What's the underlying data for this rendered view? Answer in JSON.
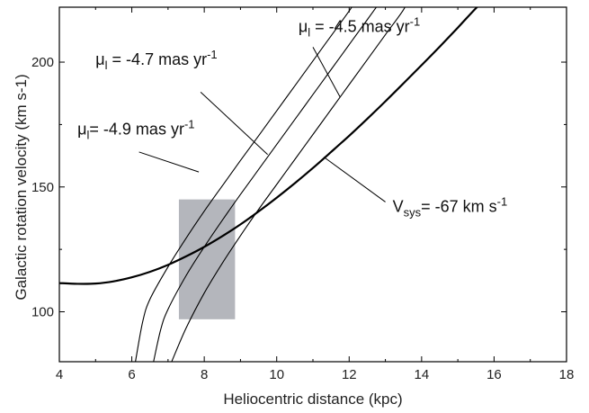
{
  "chart_data": {
    "type": "line",
    "xlabel": "Heliocentric distance (kpc)",
    "ylabel": "Galactic rotation velocity (km s-1)",
    "xlim": [
      4,
      18
    ],
    "ylim": [
      80,
      222
    ],
    "x_ticks": [
      "4",
      "6",
      "8",
      "10",
      "12",
      "14",
      "16",
      "18"
    ],
    "y_ticks": [
      "100",
      "150",
      "200"
    ],
    "grid": false,
    "series": [
      {
        "name": "Vsys= -67 km s-1",
        "style": "thick",
        "x": [
          4.0,
          4.5,
          5.0,
          5.5,
          6.0,
          6.5,
          7.0,
          7.5,
          8.0,
          8.5,
          9.0,
          9.5,
          10.0,
          10.5,
          11.0,
          11.5,
          12.0,
          12.5,
          13.0,
          13.5,
          14.0,
          14.5,
          15.0,
          15.5,
          15.9
        ],
        "y": [
          111.5,
          111.2,
          111.3,
          112.2,
          113.8,
          116.0,
          118.8,
          122.2,
          126.0,
          130.3,
          135.0,
          140.2,
          145.7,
          151.5,
          157.6,
          164.0,
          170.5,
          177.3,
          184.3,
          191.5,
          198.8,
          206.2,
          213.8,
          221.6,
          227.0
        ]
      },
      {
        "name": "μl= -4.9 mas yr-1",
        "style": "thin",
        "x": [
          6.1,
          6.3,
          6.5,
          7.0,
          7.5,
          8.0,
          8.5,
          9.0,
          9.5,
          10.0,
          10.5,
          11.0,
          11.5,
          12.0,
          12.3
        ],
        "y": [
          80.0,
          96.0,
          105.0,
          118.0,
          129.5,
          140.3,
          150.5,
          160.6,
          170.5,
          180.5,
          190.5,
          200.5,
          210.5,
          220.5,
          227.0
        ]
      },
      {
        "name": "μl = -4.7 mas yr-1",
        "style": "thin",
        "x": [
          6.6,
          6.8,
          7.0,
          7.5,
          8.0,
          8.5,
          9.0,
          9.5,
          10.0,
          10.5,
          11.0,
          11.5,
          12.0,
          12.5,
          13.0
        ],
        "y": [
          80.0,
          93.0,
          101.0,
          114.5,
          126.0,
          136.7,
          147.0,
          157.0,
          167.0,
          177.0,
          187.0,
          197.0,
          207.0,
          217.0,
          227.0
        ]
      },
      {
        "name": "μl = -4.5 mas yr-1",
        "style": "thin",
        "x": [
          7.1,
          7.5,
          8.0,
          8.5,
          9.0,
          9.5,
          10.0,
          10.5,
          11.0,
          11.5,
          12.0,
          12.5,
          13.0,
          13.5,
          13.7
        ],
        "y": [
          80.0,
          93.5,
          107.5,
          119.5,
          130.5,
          141.0,
          151.0,
          161.0,
          171.0,
          181.0,
          191.0,
          201.0,
          211.0,
          221.0,
          227.0
        ]
      }
    ],
    "shaded_region": {
      "x": [
        7.3,
        8.85
      ],
      "y": [
        97,
        145
      ],
      "color": "#b4b6bc"
    },
    "annotations": [
      {
        "id": "mu45",
        "prefix": "μ",
        "sub": "l",
        "text": " = -4.5 mas yr",
        "sup": "-1",
        "text_at": [
          10.6,
          212
        ],
        "line_from": [
          11.0,
          206
        ],
        "line_to": [
          11.75,
          186
        ]
      },
      {
        "id": "mu47",
        "prefix": "μ",
        "sub": "l",
        "text": " = -4.7 mas yr",
        "sup": "-1",
        "text_at": [
          5.0,
          199
        ],
        "line_from": [
          7.9,
          188
        ],
        "line_to": [
          9.75,
          163
        ]
      },
      {
        "id": "mu49",
        "prefix": "μ",
        "sub": "l",
        "text": "= -4.9 mas yr",
        "sup": "-1",
        "text_at": [
          4.5,
          171
        ],
        "line_from": [
          6.2,
          164
        ],
        "line_to": [
          7.85,
          156
        ]
      },
      {
        "id": "vsys",
        "prefix": "V",
        "sub": "sys",
        "text": "= -67 km s",
        "sup": "-1",
        "text_at": [
          13.2,
          140
        ],
        "line_from": [
          11.3,
          162
        ],
        "line_to": [
          13.0,
          144
        ]
      }
    ],
    "colors": {
      "axis": "#000000",
      "curve": "#000000",
      "band": "#b4b6bc"
    }
  }
}
